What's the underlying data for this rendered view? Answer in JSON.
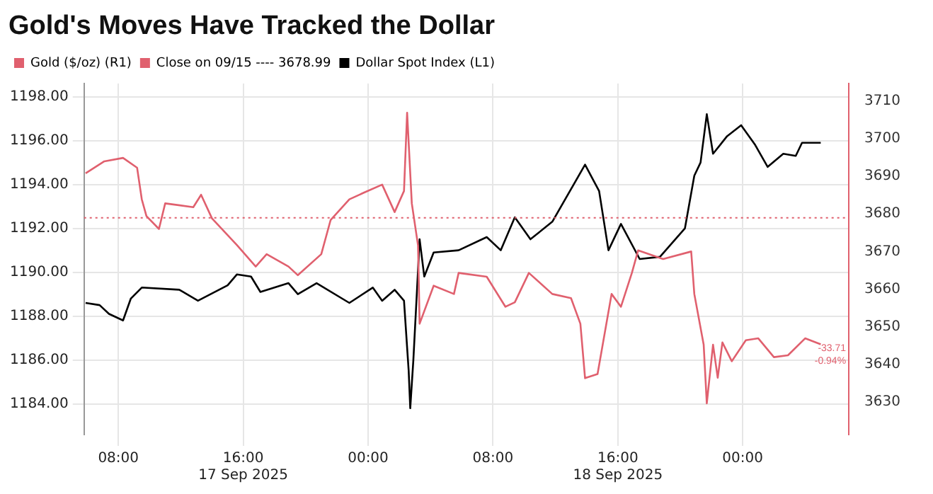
{
  "chart_data": {
    "type": "line",
    "title": "Gold's Moves Have Tracked the Dollar",
    "xlim": [
      "2025-09-17T05:48",
      "2025-09-19T06:48"
    ],
    "xticks": [
      {
        "value": "2025-09-17T08:00",
        "label": "08:00"
      },
      {
        "value": "2025-09-17T16:00",
        "label": "16:00\n17 Sep 2025"
      },
      {
        "value": "2025-09-18T00:00",
        "label": "00:00"
      },
      {
        "value": "2025-09-18T08:00",
        "label": "08:00"
      },
      {
        "value": "2025-09-18T16:00",
        "label": "16:00\n18 Sep 2025"
      },
      {
        "value": "2025-09-19T00:00",
        "label": "00:00"
      }
    ],
    "ylim": [
      1182.6,
      1198.6
    ],
    "yticks": [
      {
        "value": 1184,
        "label": "1184.00"
      },
      {
        "value": 1186,
        "label": "1186.00"
      },
      {
        "value": 1188,
        "label": "1188.00"
      },
      {
        "value": 1190,
        "label": "1190.00"
      },
      {
        "value": 1192,
        "label": "1192.00"
      },
      {
        "value": 1194,
        "label": "1194.00"
      },
      {
        "value": 1196,
        "label": "1196.00"
      },
      {
        "value": 1198,
        "label": "1198.00"
      }
    ],
    "y2lim": [
      3621.3,
      3714.7
    ],
    "y2ticks": [
      3630,
      3640,
      3650,
      3660,
      3670,
      3680,
      3690,
      3700,
      3710
    ],
    "grid": true,
    "legend": "top left",
    "marker": "none",
    "line_style": "solid",
    "series": [
      {
        "name": "Gold ($/oz) (R1)",
        "color": "#e0606e",
        "axis": "y2",
        "x": [
          "2025-09-17T05:54",
          "2025-09-17T07:06",
          "2025-09-17T08:18",
          "2025-09-17T09:12",
          "2025-09-17T09:30",
          "2025-09-17T09:48",
          "2025-09-17T10:36",
          "2025-09-17T11:00",
          "2025-09-17T12:48",
          "2025-09-17T13:18",
          "2025-09-17T14:00",
          "2025-09-17T15:36",
          "2025-09-17T16:48",
          "2025-09-17T17:30",
          "2025-09-17T18:54",
          "2025-09-17T19:30",
          "2025-09-17T21:00",
          "2025-09-17T21:36",
          "2025-09-17T22:48",
          "2025-09-17T23:42",
          "2025-09-18T00:54",
          "2025-09-18T01:42",
          "2025-09-18T02:18",
          "2025-09-18T02:30",
          "2025-09-18T02:48",
          "2025-09-18T03:12",
          "2025-09-18T03:18",
          "2025-09-18T04:12",
          "2025-09-18T05:30",
          "2025-09-18T05:48",
          "2025-09-18T07:36",
          "2025-09-18T08:48",
          "2025-09-18T09:24",
          "2025-09-18T10:18",
          "2025-09-18T11:48",
          "2025-09-18T13:00",
          "2025-09-18T13:36",
          "2025-09-18T13:54",
          "2025-09-18T14:42",
          "2025-09-18T15:36",
          "2025-09-18T16:12",
          "2025-09-18T16:54",
          "2025-09-18T17:18",
          "2025-09-18T18:54",
          "2025-09-18T20:42",
          "2025-09-18T20:54",
          "2025-09-18T21:30",
          "2025-09-18T21:42",
          "2025-09-18T22:06",
          "2025-09-18T22:24",
          "2025-09-18T22:42",
          "2025-09-18T23:18",
          "2025-09-19T00:12",
          "2025-09-19T01:00",
          "2025-09-19T02:00",
          "2025-09-19T02:54",
          "2025-09-19T04:00",
          "2025-09-19T05:00"
        ],
        "values": [
          3690.8,
          3694.0,
          3694.9,
          3692.3,
          3683.9,
          3679.4,
          3676.0,
          3682.8,
          3681.8,
          3685.1,
          3678.8,
          3671.7,
          3666.0,
          3669.3,
          3666.0,
          3663.7,
          3669.3,
          3678.4,
          3683.9,
          3685.6,
          3687.8,
          3680.5,
          3686.1,
          3706.9,
          3682.8,
          3671.6,
          3650.8,
          3660.9,
          3658.7,
          3664.3,
          3663.3,
          3655.3,
          3656.5,
          3664.3,
          3658.7,
          3657.6,
          3650.8,
          3636.3,
          3637.4,
          3658.7,
          3655.3,
          3664.3,
          3670.3,
          3668.0,
          3670.0,
          3658.7,
          3645.2,
          3629.6,
          3645.2,
          3636.4,
          3645.8,
          3640.8,
          3646.4,
          3646.9,
          3641.9,
          3642.4,
          3646.9,
          3645.3
        ]
      },
      {
        "name": "Dollar Spot Index (L1)",
        "color": "#000000",
        "x": [
          "2025-09-17T05:54",
          "2025-09-17T06:48",
          "2025-09-17T07:24",
          "2025-09-17T08:18",
          "2025-09-17T08:48",
          "2025-09-17T09:30",
          "2025-09-17T11:54",
          "2025-09-17T13:06",
          "2025-09-17T15:00",
          "2025-09-17T15:36",
          "2025-09-17T16:30",
          "2025-09-17T17:06",
          "2025-09-17T18:54",
          "2025-09-17T19:30",
          "2025-09-17T20:42",
          "2025-09-17T22:48",
          "2025-09-18T00:18",
          "2025-09-18T00:54",
          "2025-09-18T01:42",
          "2025-09-18T02:18",
          "2025-09-18T02:36",
          "2025-09-18T02:42",
          "2025-09-18T02:54",
          "2025-09-18T03:12",
          "2025-09-18T03:18",
          "2025-09-18T03:36",
          "2025-09-18T04:12",
          "2025-09-18T05:48",
          "2025-09-18T07:36",
          "2025-09-18T08:30",
          "2025-09-18T09:24",
          "2025-09-18T10:24",
          "2025-09-18T11:48",
          "2025-09-18T13:54",
          "2025-09-18T14:48",
          "2025-09-18T15:24",
          "2025-09-18T16:12",
          "2025-09-18T17:24",
          "2025-09-18T18:42",
          "2025-09-18T20:18",
          "2025-09-18T20:54",
          "2025-09-18T21:18",
          "2025-09-18T21:42",
          "2025-09-18T22:06",
          "2025-09-18T23:00",
          "2025-09-18T23:54",
          "2025-09-19T00:48",
          "2025-09-19T01:36",
          "2025-09-19T02:36",
          "2025-09-19T03:24",
          "2025-09-19T03:48",
          "2025-09-19T05:00"
        ],
        "values": [
          1188.6,
          1188.5,
          1188.1,
          1187.8,
          1188.8,
          1189.3,
          1189.2,
          1188.7,
          1189.4,
          1189.9,
          1189.8,
          1189.1,
          1189.5,
          1189.0,
          1189.5,
          1188.6,
          1189.3,
          1188.7,
          1189.2,
          1188.7,
          1185.5,
          1183.8,
          1186.0,
          1190.1,
          1191.5,
          1189.8,
          1190.9,
          1191.0,
          1191.6,
          1191.0,
          1192.5,
          1191.5,
          1192.3,
          1194.9,
          1193.7,
          1191.0,
          1192.2,
          1190.6,
          1190.7,
          1192.0,
          1194.4,
          1195.0,
          1197.2,
          1195.4,
          1196.2,
          1196.7,
          1195.8,
          1194.8,
          1195.4,
          1195.3,
          1195.9,
          1195.9
        ]
      }
    ],
    "ref_lines": [
      {
        "axis": "y2",
        "value": 3678.99,
        "label": "Close on 09/15 ---- 3678.99",
        "color": "#e0606e",
        "line_style": "dotted"
      }
    ],
    "annotations": [
      "-33.71",
      "-0.94%"
    ]
  }
}
